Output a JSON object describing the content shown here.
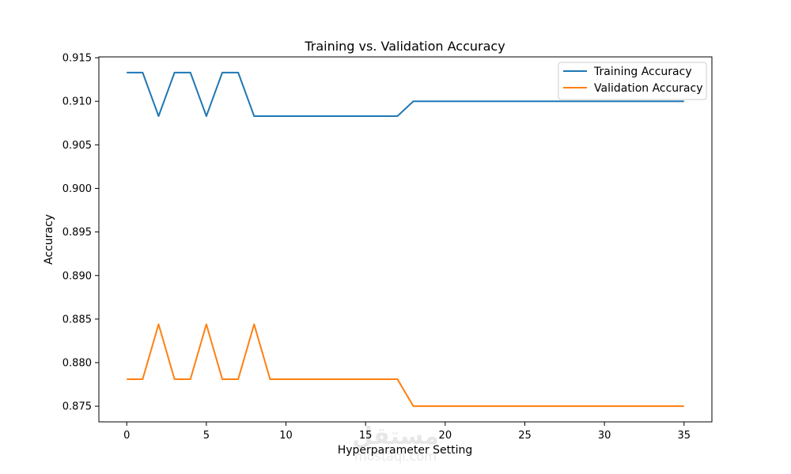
{
  "chart_data": {
    "type": "line",
    "title": "Training vs. Validation Accuracy",
    "xlabel": "Hyperparameter Setting",
    "ylabel": "Accuracy",
    "xlim": [
      -1.75,
      36.75
    ],
    "ylim": [
      0.8732,
      0.9151
    ],
    "xticks": [
      0,
      5,
      10,
      15,
      20,
      25,
      30,
      35
    ],
    "yticks": [
      0.875,
      0.88,
      0.885,
      0.89,
      0.895,
      0.9,
      0.905,
      0.91,
      0.915
    ],
    "ytick_labels": [
      "0.875",
      "0.880",
      "0.885",
      "0.890",
      "0.895",
      "0.900",
      "0.905",
      "0.910",
      "0.915"
    ],
    "legend_position": "top-right",
    "x": [
      0,
      1,
      2,
      3,
      4,
      5,
      6,
      7,
      8,
      9,
      10,
      11,
      12,
      13,
      14,
      15,
      16,
      17,
      18,
      19,
      20,
      21,
      22,
      23,
      24,
      25,
      26,
      27,
      28,
      29,
      30,
      31,
      32,
      33,
      34,
      35
    ],
    "series": [
      {
        "name": "Training Accuracy",
        "color": "#1f77b4",
        "values": [
          0.9133,
          0.9133,
          0.9083,
          0.9133,
          0.9133,
          0.9083,
          0.9133,
          0.9133,
          0.9083,
          0.9083,
          0.9083,
          0.9083,
          0.9083,
          0.9083,
          0.9083,
          0.9083,
          0.9083,
          0.9083,
          0.91,
          0.91,
          0.91,
          0.91,
          0.91,
          0.91,
          0.91,
          0.91,
          0.91,
          0.91,
          0.91,
          0.91,
          0.91,
          0.91,
          0.91,
          0.91,
          0.91,
          0.91
        ]
      },
      {
        "name": "Validation Accuracy",
        "color": "#ff7f0e",
        "values": [
          0.8781,
          0.8781,
          0.8844,
          0.8781,
          0.8781,
          0.8844,
          0.8781,
          0.8781,
          0.8844,
          0.8781,
          0.8781,
          0.8781,
          0.8781,
          0.8781,
          0.8781,
          0.8781,
          0.8781,
          0.8781,
          0.875,
          0.875,
          0.875,
          0.875,
          0.875,
          0.875,
          0.875,
          0.875,
          0.875,
          0.875,
          0.875,
          0.875,
          0.875,
          0.875,
          0.875,
          0.875,
          0.875,
          0.875
        ]
      }
    ]
  },
  "watermark": {
    "text_arabic": "مستقل",
    "text_latin": "mostaql.com"
  }
}
